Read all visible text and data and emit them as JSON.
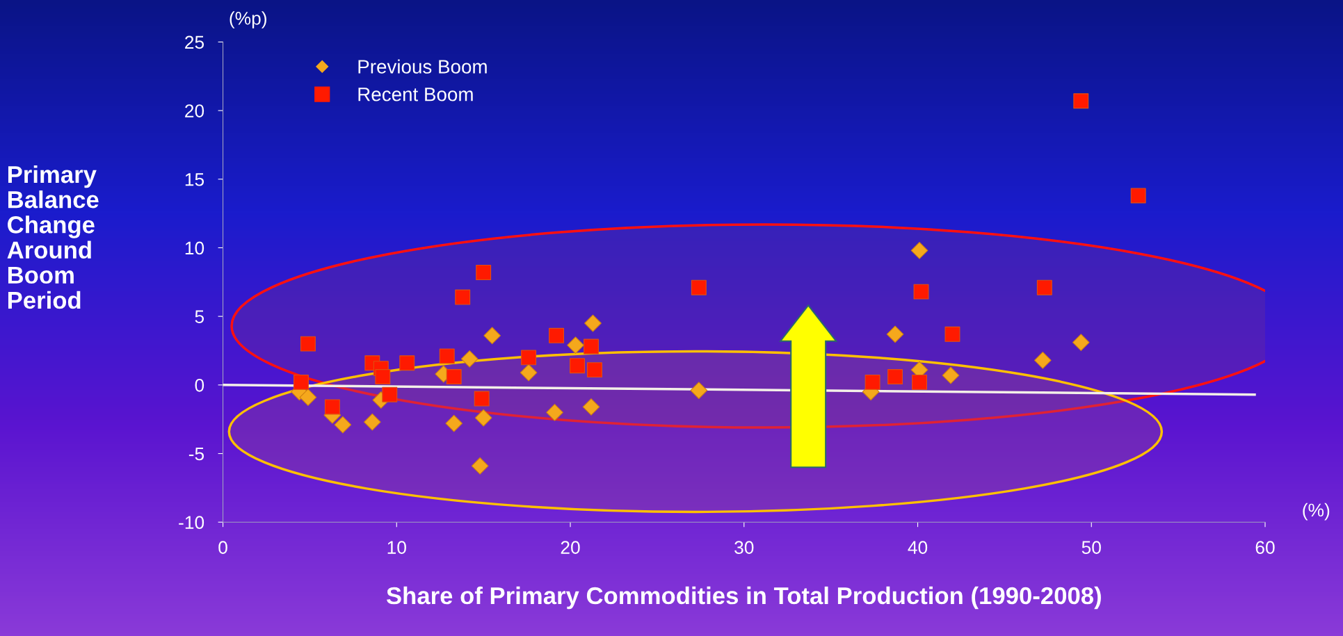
{
  "chart_data": {
    "type": "scatter",
    "xlabel": "Share of Primary Commodities in Total Production (1990-2008)",
    "ylabel": "Primary\nBalance\nChange\nAround\nBoom\nPeriod",
    "annotations": [
      "(%p)",
      "(%)"
    ],
    "xlim": [
      0,
      60
    ],
    "xticks": [
      0,
      10,
      20,
      30,
      40,
      50,
      60
    ],
    "ylim": [
      -10,
      25
    ],
    "yticks": [
      -10,
      {
        "value": -5,
        "label": "-5"
      },
      0,
      5,
      10,
      15,
      20,
      25
    ],
    "grid": false,
    "legend": "top left",
    "series": [
      {
        "name": "Previous Boom",
        "color": "#f5a81c",
        "marker": "diamond",
        "x": [
          4.4,
          4.9,
          6.3,
          6.9,
          8.6,
          9.1,
          12.7,
          14.2,
          13.3,
          15.0,
          14.8,
          15.5,
          17.6,
          19.1,
          20.3,
          21.3,
          21.2,
          27.4,
          37.3,
          38.7,
          40.1,
          40.1,
          41.9,
          47.2,
          49.4
        ],
        "values": [
          -0.5,
          -0.9,
          -2.2,
          -2.9,
          -2.7,
          -1.1,
          0.8,
          1.9,
          -2.8,
          -2.4,
          -5.9,
          3.6,
          0.9,
          -2.0,
          2.9,
          4.5,
          -1.6,
          -0.4,
          -0.5,
          3.7,
          9.8,
          1.1,
          0.7,
          1.8,
          3.1
        ]
      },
      {
        "name": "Recent Boom",
        "color": "#ff1a00",
        "marker": "square",
        "x": [
          4.5,
          4.9,
          6.3,
          8.6,
          9.1,
          9.2,
          9.6,
          10.6,
          12.9,
          13.3,
          13.8,
          14.9,
          15.0,
          17.6,
          19.2,
          20.4,
          21.2,
          21.4,
          27.4,
          37.4,
          38.7,
          40.1,
          40.2,
          42.0,
          47.3,
          49.4,
          52.7
        ],
        "values": [
          0.2,
          3.0,
          -1.6,
          1.6,
          1.2,
          0.6,
          -0.7,
          1.6,
          2.1,
          0.6,
          6.4,
          -1.0,
          8.2,
          2.0,
          3.6,
          1.4,
          2.8,
          1.1,
          7.1,
          0.2,
          0.6,
          0.2,
          6.8,
          3.7,
          7.1,
          20.7,
          13.8
        ]
      },
      {
        "type": "line",
        "color": "#f4f0e8",
        "marker": "none",
        "x": [
          0,
          59.4
        ],
        "values": [
          0,
          -0.7
        ]
      }
    ]
  }
}
